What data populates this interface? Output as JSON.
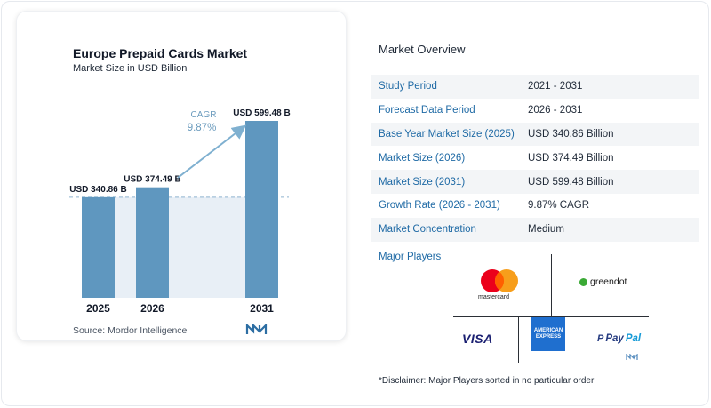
{
  "chart": {
    "title": "Europe Prepaid Cards Market",
    "subtitle": "Market Size in USD Billion",
    "source": "Source:  Mordor Intelligence",
    "cagr_label": "CAGR",
    "cagr_value": "9.87%"
  },
  "chart_data": {
    "type": "bar",
    "title": "Europe Prepaid Cards Market",
    "subtitle": "Market Size in USD Billion",
    "categories": [
      "2025",
      "2026",
      "2031"
    ],
    "values": [
      340.86,
      374.49,
      599.48
    ],
    "data_labels": [
      "USD 340.86 B",
      "USD 374.49 B",
      "USD 599.48 B"
    ],
    "annotation": {
      "label": "CAGR",
      "value": "9.87%"
    },
    "ylim": [
      0,
      620
    ],
    "grid": false,
    "bar_color": "#5f97bf",
    "reference_line_value": 340.86
  },
  "overview": {
    "title": "Market Overview",
    "rows": [
      {
        "key": "Study Period",
        "value": "2021 - 2031"
      },
      {
        "key": "Forecast Data Period",
        "value": "2026 - 2031"
      },
      {
        "key": "Base Year Market Size (2025)",
        "value": "USD 340.86 Billion"
      },
      {
        "key": "Market Size (2026)",
        "value": "USD 374.49 Billion"
      },
      {
        "key": "Market Size (2031)",
        "value": "USD 599.48 Billion"
      },
      {
        "key": "Growth Rate (2026 - 2031)",
        "value": "9.87% CAGR"
      },
      {
        "key": "Market Concentration",
        "value": "Medium"
      }
    ],
    "players_title": "Major Players",
    "players": {
      "mastercard": "mastercard",
      "greendot": "greendot",
      "visa": "VISA",
      "amex_line1": "AMERICAN",
      "amex_line2": "EXPRESS",
      "paypal_1": "Pay",
      "paypal_2": "Pal"
    },
    "disclaimer": "*Disclaimer: Major Players sorted in no particular order"
  },
  "colors": {
    "accent_blue": "#1f6aa5",
    "bar": "#5f97bf",
    "arrow": "#7fb0d0"
  }
}
